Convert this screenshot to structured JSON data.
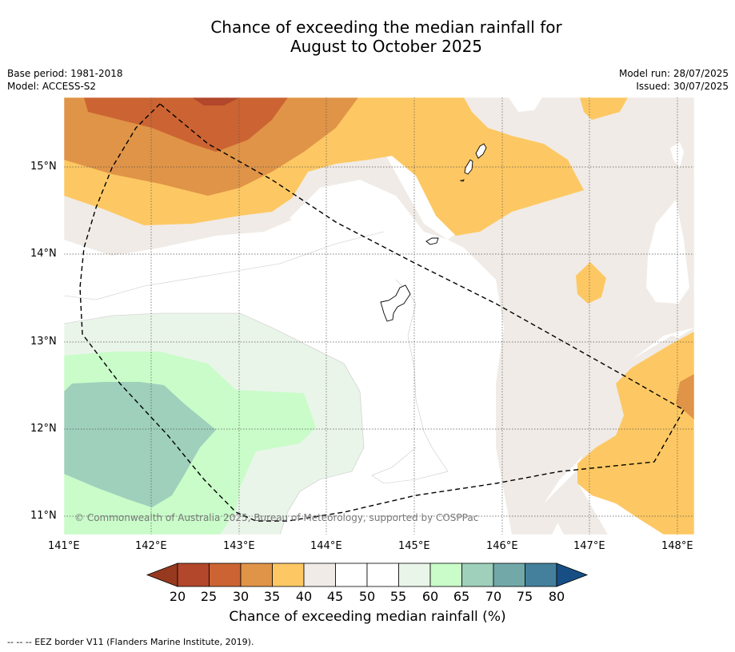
{
  "title_line1": "Chance of exceeding the median rainfall for",
  "title_line2": "August to October 2025",
  "meta_left": {
    "base_period": "Base period: 1981-2018",
    "model": "Model: ACCESS-S2"
  },
  "meta_right": {
    "model_run": "Model run: 28/07/2025",
    "issued": "Issued: 30/07/2025"
  },
  "copyright": "© Commonwealth of Australia 2025, Bureau of Meteorology, supported by COSPPac",
  "axes": {
    "x_ticks": [
      "141°E",
      "142°E",
      "143°E",
      "144°E",
      "145°E",
      "146°E",
      "147°E",
      "148°E"
    ],
    "y_ticks": [
      "15°N",
      "14°N",
      "13°N",
      "12°N",
      "11°N"
    ]
  },
  "colorbar": {
    "title": "Chance of exceeding median rainfall (%)",
    "ticks": [
      "20",
      "25",
      "30",
      "35",
      "40",
      "45",
      "50",
      "55",
      "60",
      "65",
      "70",
      "75",
      "80"
    ],
    "colors": [
      "#b2472b",
      "#cb6432",
      "#e09447",
      "#fdc863",
      "#f0ebe6",
      "#ffffff",
      "#ffffff",
      "#eaf5ea",
      "#c9fcc9",
      "#9ed0bb",
      "#72a8a8",
      "#44809c"
    ],
    "under_color": "#97391f",
    "over_color": "#174f85"
  },
  "footer": "--  --  -- EEZ border V11 (Flanders Marine Institute, 2019)."
}
